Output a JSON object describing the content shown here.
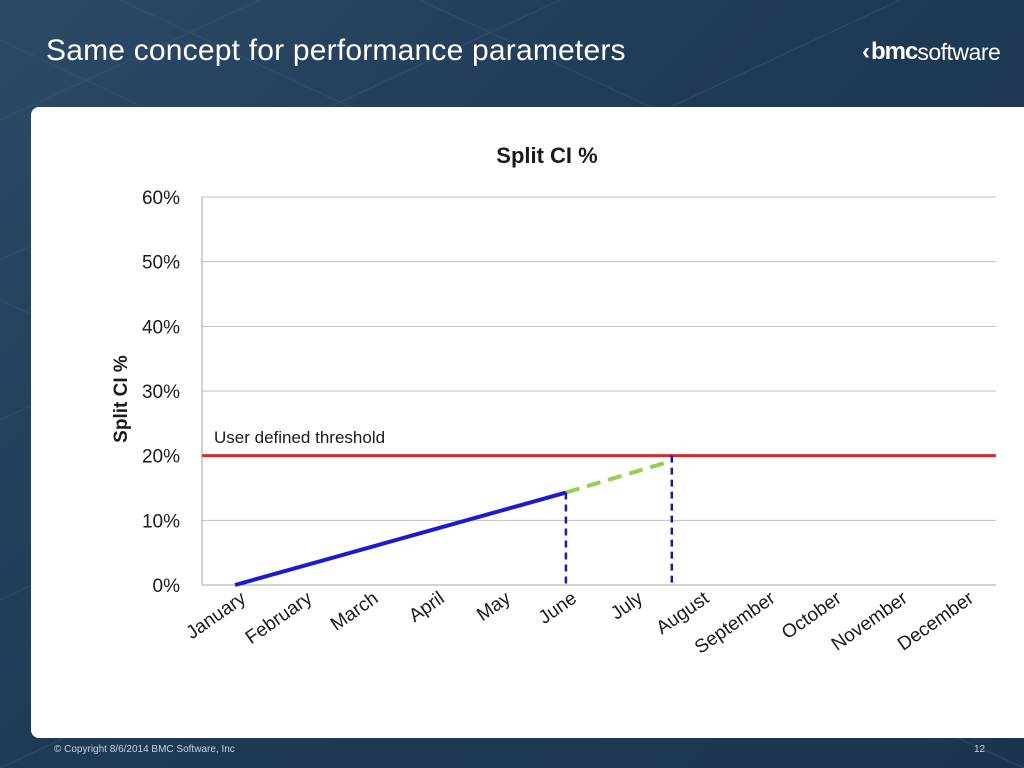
{
  "slide": {
    "title": "Same concept for performance parameters",
    "logo_text_bold": "bmc",
    "logo_text_light": "software",
    "copyright": "© Copyright 8/6/2014 BMC Software, Inc",
    "page_number": "12"
  },
  "colors": {
    "actual": "#1a1ad0",
    "projected": "#92d050",
    "threshold": "#d42a2a",
    "marker": "#1a1a9a",
    "grid": "#bfbfbf"
  },
  "chart_data": {
    "type": "line",
    "title": "Split CI %",
    "ylabel": "Split CI %",
    "xlabel": "",
    "categories": [
      "January",
      "February",
      "March",
      "April",
      "May",
      "June",
      "July",
      "August",
      "September",
      "October",
      "November",
      "December"
    ],
    "ylim": [
      0,
      0.6
    ],
    "yticks": [
      "0%",
      "10%",
      "20%",
      "30%",
      "40%",
      "50%",
      "60%"
    ],
    "grid": true,
    "series": [
      {
        "role": "actual",
        "style": "solid",
        "points": [
          [
            0,
            0
          ],
          [
            5,
            0.143
          ]
        ]
      },
      {
        "role": "projected",
        "style": "dashed",
        "points": [
          [
            5,
            0.143
          ],
          [
            6.6,
            0.192
          ]
        ]
      }
    ],
    "threshold": {
      "label": "User defined threshold",
      "value": 0.2,
      "x_range": [
        0,
        11.5
      ]
    },
    "markers": [
      {
        "x": 5,
        "y": 0.143
      },
      {
        "x": 6.6,
        "y": 0.2
      }
    ]
  }
}
